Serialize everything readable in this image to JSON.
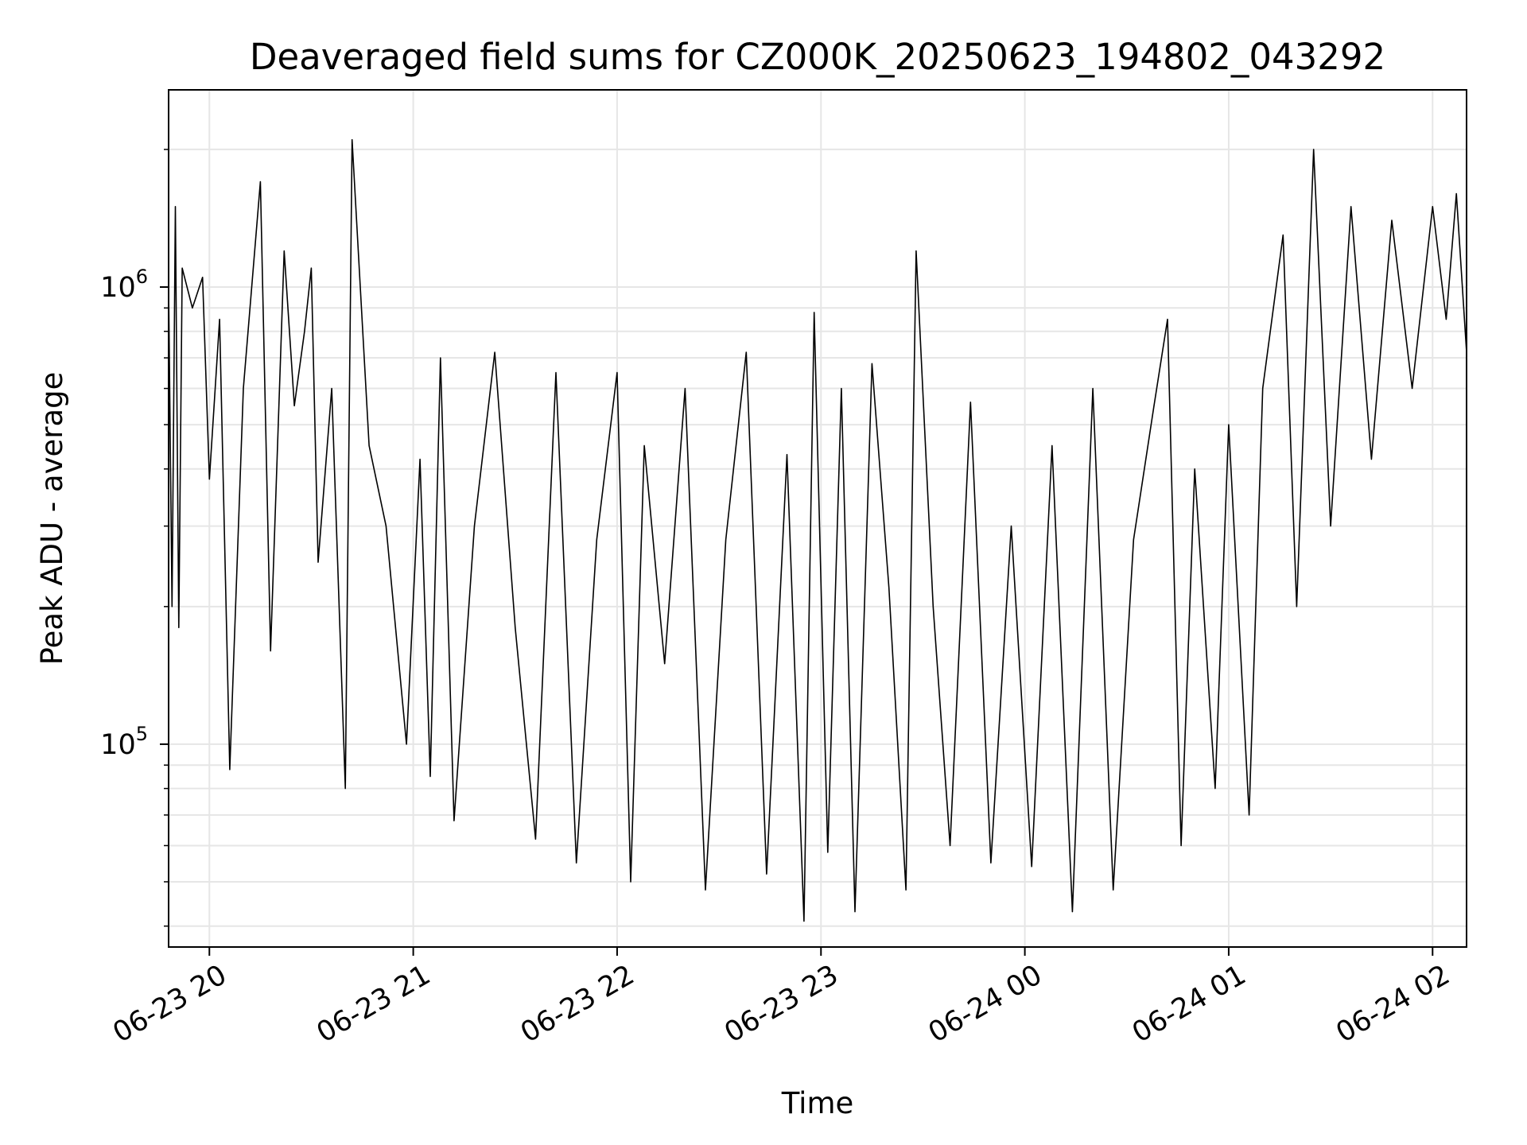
{
  "chart_data": {
    "type": "line",
    "title": "Deaveraged field sums for CZ000K_20250623_194802_043292",
    "xlabel": "Time",
    "ylabel": "Peak ADU - average",
    "y_scale": "log",
    "ylim": [
      36000,
      2700000
    ],
    "xlim": [
      "2025-06-23 19:48",
      "2025-06-24 02:10"
    ],
    "grid": true,
    "x_ticks": [
      {
        "t": "2025-06-23 20:00",
        "label": "06-23 20"
      },
      {
        "t": "2025-06-23 21:00",
        "label": "06-23 21"
      },
      {
        "t": "2025-06-23 22:00",
        "label": "06-23 22"
      },
      {
        "t": "2025-06-23 23:00",
        "label": "06-23 23"
      },
      {
        "t": "2025-06-24 00:00",
        "label": "06-24 00"
      },
      {
        "t": "2025-06-24 01:00",
        "label": "06-24 01"
      },
      {
        "t": "2025-06-24 02:00",
        "label": "06-24 02"
      }
    ],
    "y_ticks": [
      {
        "value": 100000,
        "base": "10",
        "exp": "5"
      },
      {
        "value": 1000000,
        "base": "10",
        "exp": "6"
      }
    ],
    "series": [
      {
        "color": "#000000",
        "points": [
          [
            "2025-06-23 19:48",
            1000000
          ],
          [
            "2025-06-23 19:49",
            200000
          ],
          [
            "2025-06-23 19:50",
            1500000
          ],
          [
            "2025-06-23 19:51",
            180000
          ],
          [
            "2025-06-23 19:52",
            1100000
          ],
          [
            "2025-06-23 19:55",
            900000
          ],
          [
            "2025-06-23 19:58",
            1050000
          ],
          [
            "2025-06-23 20:00",
            380000
          ],
          [
            "2025-06-23 20:03",
            850000
          ],
          [
            "2025-06-23 20:06",
            88000
          ],
          [
            "2025-06-23 20:10",
            600000
          ],
          [
            "2025-06-23 20:15",
            1700000
          ],
          [
            "2025-06-23 20:18",
            160000
          ],
          [
            "2025-06-23 20:22",
            1200000
          ],
          [
            "2025-06-23 20:25",
            550000
          ],
          [
            "2025-06-23 20:28",
            800000
          ],
          [
            "2025-06-23 20:30",
            1100000
          ],
          [
            "2025-06-23 20:32",
            250000
          ],
          [
            "2025-06-23 20:36",
            600000
          ],
          [
            "2025-06-23 20:40",
            80000
          ],
          [
            "2025-06-23 20:42",
            2100000
          ],
          [
            "2025-06-23 20:47",
            450000
          ],
          [
            "2025-06-23 20:52",
            300000
          ],
          [
            "2025-06-23 20:58",
            100000
          ],
          [
            "2025-06-23 21:02",
            420000
          ],
          [
            "2025-06-23 21:05",
            85000
          ],
          [
            "2025-06-23 21:08",
            700000
          ],
          [
            "2025-06-23 21:12",
            68000
          ],
          [
            "2025-06-23 21:18",
            300000
          ],
          [
            "2025-06-23 21:24",
            720000
          ],
          [
            "2025-06-23 21:30",
            180000
          ],
          [
            "2025-06-23 21:36",
            62000
          ],
          [
            "2025-06-23 21:42",
            650000
          ],
          [
            "2025-06-23 21:48",
            55000
          ],
          [
            "2025-06-23 21:54",
            280000
          ],
          [
            "2025-06-23 22:00",
            650000
          ],
          [
            "2025-06-23 22:04",
            50000
          ],
          [
            "2025-06-23 22:08",
            450000
          ],
          [
            "2025-06-23 22:14",
            150000
          ],
          [
            "2025-06-23 22:20",
            600000
          ],
          [
            "2025-06-23 22:26",
            48000
          ],
          [
            "2025-06-23 22:32",
            280000
          ],
          [
            "2025-06-23 22:38",
            720000
          ],
          [
            "2025-06-23 22:44",
            52000
          ],
          [
            "2025-06-23 22:50",
            430000
          ],
          [
            "2025-06-23 22:55",
            41000
          ],
          [
            "2025-06-23 22:58",
            880000
          ],
          [
            "2025-06-23 23:02",
            58000
          ],
          [
            "2025-06-23 23:06",
            600000
          ],
          [
            "2025-06-23 23:10",
            43000
          ],
          [
            "2025-06-23 23:15",
            680000
          ],
          [
            "2025-06-23 23:20",
            220000
          ],
          [
            "2025-06-23 23:25",
            48000
          ],
          [
            "2025-06-23 23:28",
            1200000
          ],
          [
            "2025-06-23 23:33",
            200000
          ],
          [
            "2025-06-23 23:38",
            60000
          ],
          [
            "2025-06-23 23:44",
            560000
          ],
          [
            "2025-06-23 23:50",
            55000
          ],
          [
            "2025-06-23 23:56",
            300000
          ],
          [
            "2025-06-24 00:02",
            54000
          ],
          [
            "2025-06-24 00:08",
            450000
          ],
          [
            "2025-06-24 00:14",
            43000
          ],
          [
            "2025-06-24 00:20",
            600000
          ],
          [
            "2025-06-24 00:26",
            48000
          ],
          [
            "2025-06-24 00:32",
            280000
          ],
          [
            "2025-06-24 00:38",
            550000
          ],
          [
            "2025-06-24 00:42",
            850000
          ],
          [
            "2025-06-24 00:46",
            60000
          ],
          [
            "2025-06-24 00:50",
            400000
          ],
          [
            "2025-06-24 00:56",
            80000
          ],
          [
            "2025-06-24 01:00",
            500000
          ],
          [
            "2025-06-24 01:06",
            70000
          ],
          [
            "2025-06-24 01:10",
            600000
          ],
          [
            "2025-06-24 01:16",
            1300000
          ],
          [
            "2025-06-24 01:20",
            200000
          ],
          [
            "2025-06-24 01:25",
            2000000
          ],
          [
            "2025-06-24 01:30",
            300000
          ],
          [
            "2025-06-24 01:36",
            1500000
          ],
          [
            "2025-06-24 01:42",
            420000
          ],
          [
            "2025-06-24 01:48",
            1400000
          ],
          [
            "2025-06-24 01:54",
            600000
          ],
          [
            "2025-06-24 02:00",
            1500000
          ],
          [
            "2025-06-24 02:04",
            850000
          ],
          [
            "2025-06-24 02:07",
            1600000
          ],
          [
            "2025-06-24 02:10",
            720000
          ]
        ]
      }
    ]
  }
}
